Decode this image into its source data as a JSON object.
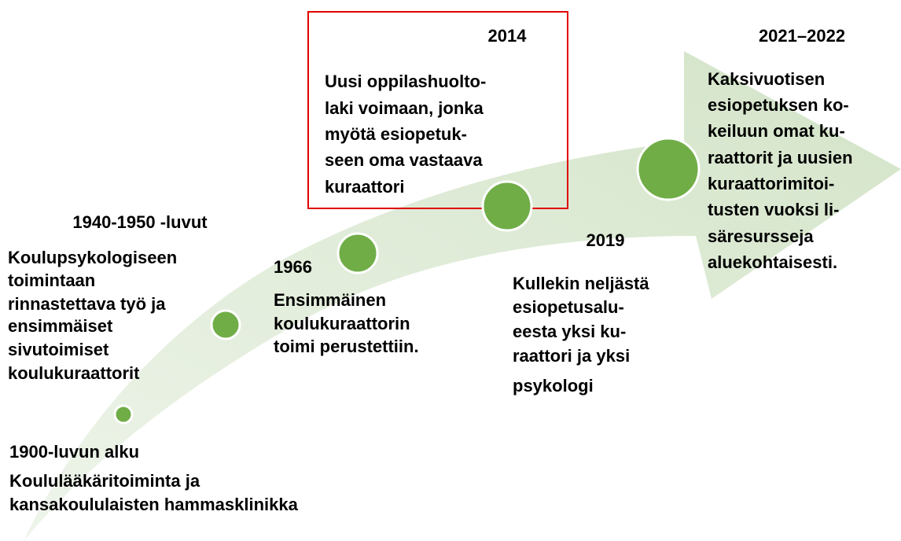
{
  "events": [
    {
      "year": "1900-luvun alku",
      "lines": [
        "Koululääkäritoiminta ja",
        "kansakoululaisten hammasklinikka"
      ]
    },
    {
      "year": "1940-1950 -luvut",
      "lines": [
        "Koulupsykologiseen",
        "toimintaan",
        "rinnastettava työ ja",
        "ensimmäiset",
        "sivutoimiset",
        "koulukuraattorit"
      ]
    },
    {
      "year": "1966",
      "lines": [
        "Ensimmäinen",
        "koulukuraattorin",
        "toimi perustettiin."
      ]
    },
    {
      "year": "2014",
      "lines": [
        "Uusi oppilashuolto-",
        "laki voimaan, jonka",
        "myötä esiopetuk-",
        "seen oma vastaava",
        "kuraattori"
      ]
    },
    {
      "year": "2019",
      "lines": [
        "Kullekin neljästä",
        "esiopetusalu-",
        "eesta yksi ku-",
        "raattori ja yksi",
        "psykologi"
      ]
    },
    {
      "year": "2021–2022",
      "lines": [
        "Kaksivuotisen",
        "esiopetuksen ko-",
        "keiluun omat ku-",
        "raattorit ja uusien",
        "kuraattorimitoi-",
        "tusten vuoksi li-",
        "säresursseja",
        "aluekohtaisesti."
      ]
    }
  ]
}
